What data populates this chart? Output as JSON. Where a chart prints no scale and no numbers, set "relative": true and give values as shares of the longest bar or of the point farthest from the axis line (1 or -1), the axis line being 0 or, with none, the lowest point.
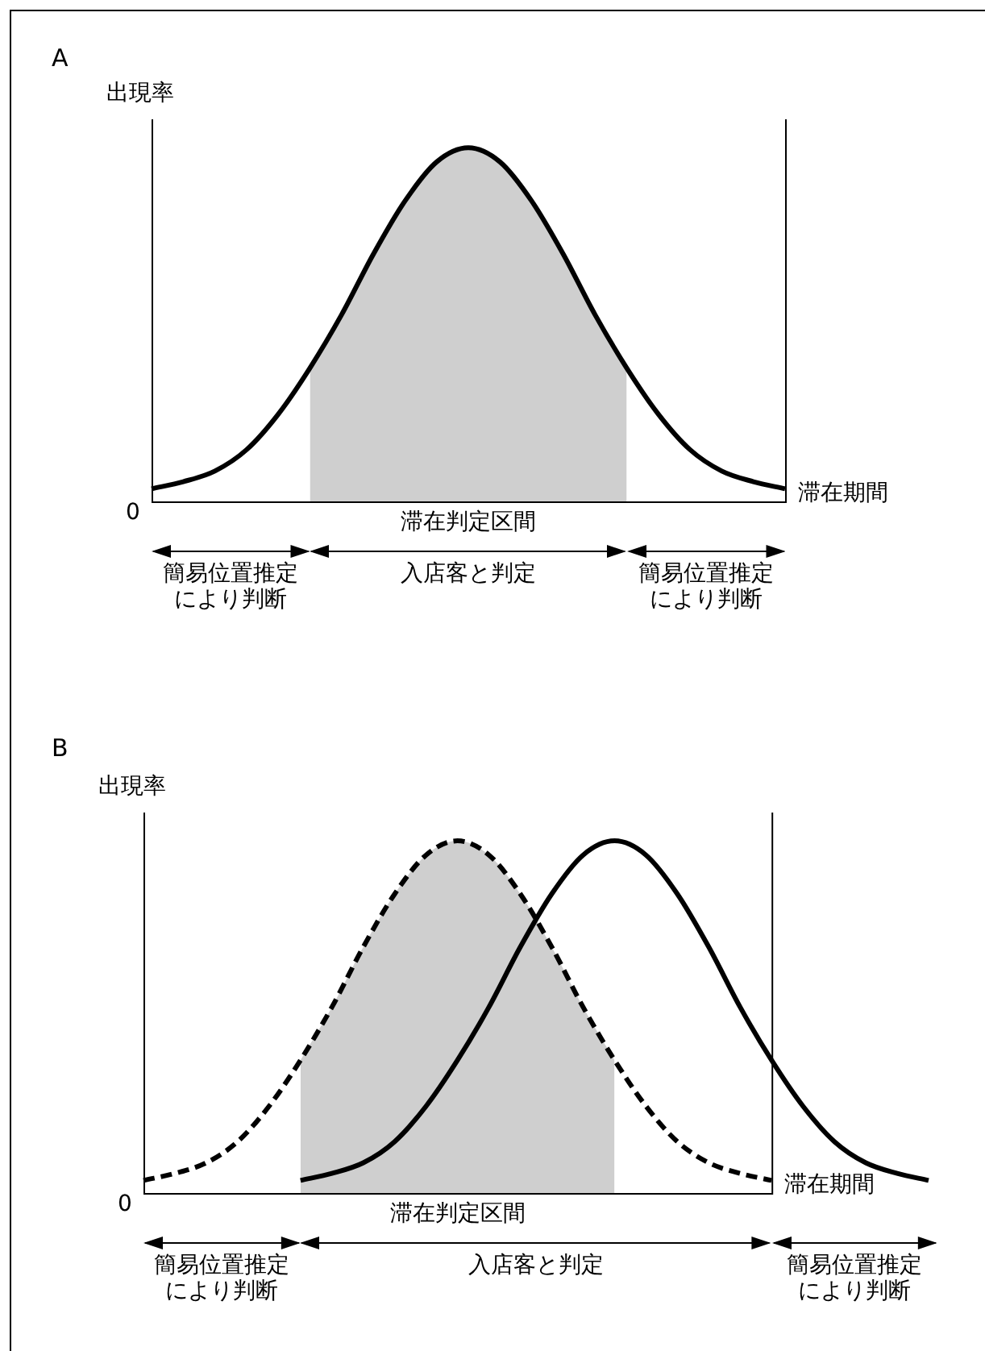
{
  "chart_data": [
    {
      "type": "line",
      "title": "A",
      "ylabel": "出現率",
      "xlabel": "滞在期間",
      "relative": true,
      "legend": false,
      "marker": "none",
      "categories": [
        null,
        null,
        null,
        null,
        null,
        null,
        null,
        null,
        null,
        null,
        null,
        null,
        null,
        null,
        null,
        null,
        null,
        null,
        null,
        null,
        null
      ],
      "series": [
        {
          "type": "line",
          "color": "#000000",
          "line_style": "solid",
          "values": [
            0.04,
            0.06,
            0.09,
            0.15,
            0.25,
            0.38,
            0.53,
            0.7,
            0.85,
            0.96,
            1,
            0.96,
            0.85,
            0.7,
            0.53,
            0.38,
            0.25,
            0.15,
            0.09,
            0.06,
            0.04
          ]
        },
        {
          "type": "area",
          "color": "#cfcfcf",
          "values": [
            null,
            null,
            null,
            null,
            null,
            0.38,
            0.53,
            0.7,
            0.85,
            0.96,
            1,
            0.96,
            0.85,
            0.7,
            0.53,
            0.38,
            null,
            null,
            null,
            null,
            null
          ]
        }
      ],
      "annotations": [
        "0",
        "滞在判定区間",
        "簡易位置推定により判断",
        "入店客と判定",
        "簡易位置推定により判断"
      ]
    },
    {
      "type": "line",
      "title": "B",
      "ylabel": "出現率",
      "xlabel": "滞在期間",
      "relative": true,
      "legend": false,
      "marker": "none",
      "categories": [
        null,
        null,
        null,
        null,
        null,
        null,
        null,
        null,
        null,
        null,
        null,
        null,
        null,
        null,
        null,
        null,
        null,
        null,
        null,
        null,
        null,
        null,
        null,
        null,
        null,
        null
      ],
      "series": [
        {
          "type": "line",
          "color": "#000000",
          "line_style": "dashed",
          "values": [
            0.04,
            0.06,
            0.09,
            0.15,
            0.25,
            0.38,
            0.53,
            0.7,
            0.85,
            0.96,
            1,
            0.96,
            0.85,
            0.7,
            0.53,
            0.38,
            0.25,
            0.15,
            0.09,
            0.06,
            0.04,
            null,
            null,
            null,
            null,
            null
          ]
        },
        {
          "type": "line",
          "color": "#000000",
          "line_style": "solid",
          "values": [
            null,
            null,
            null,
            null,
            null,
            0.04,
            0.06,
            0.09,
            0.15,
            0.25,
            0.38,
            0.53,
            0.7,
            0.85,
            0.96,
            1,
            0.96,
            0.85,
            0.7,
            0.53,
            0.38,
            0.25,
            0.15,
            0.09,
            0.06,
            0.04
          ]
        },
        {
          "type": "area",
          "color": "#cfcfcf",
          "values": [
            null,
            null,
            null,
            null,
            null,
            0.38,
            0.53,
            0.7,
            0.85,
            0.96,
            1,
            0.96,
            0.85,
            0.7,
            0.53,
            0.38,
            null,
            null,
            null,
            null,
            null,
            null,
            null,
            null,
            null,
            null
          ]
        }
      ],
      "annotations": [
        "0",
        "滞在判定区間",
        "簡易位置推定により判断",
        "入店客と判定",
        "簡易位置推定により判断"
      ]
    }
  ]
}
